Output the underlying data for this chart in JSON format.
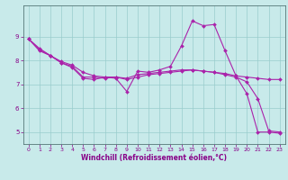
{
  "background_color": "#c8eaea",
  "line_color": "#aa22aa",
  "grid_color": "#99cccc",
  "xlabel": "Windchill (Refroidissement éolien,°C)",
  "xlabel_color": "#880088",
  "tick_color": "#880088",
  "xlim": [
    -0.5,
    23.5
  ],
  "ylim": [
    4.5,
    10.3
  ],
  "yticks": [
    5,
    6,
    7,
    8,
    9
  ],
  "xticks": [
    0,
    1,
    2,
    3,
    4,
    5,
    6,
    7,
    8,
    9,
    10,
    11,
    12,
    13,
    14,
    15,
    16,
    17,
    18,
    19,
    20,
    21,
    22,
    23
  ],
  "lines": [
    {
      "x": [
        0,
        1,
        2,
        3,
        4,
        5,
        6,
        7,
        8,
        9,
        10,
        11,
        12,
        13,
        14,
        15,
        16,
        17,
        18,
        19,
        20,
        21,
        22,
        23
      ],
      "y": [
        8.9,
        8.4,
        8.2,
        7.9,
        7.7,
        7.25,
        7.2,
        7.3,
        7.25,
        6.7,
        7.55,
        7.5,
        7.6,
        7.75,
        8.6,
        9.65,
        9.45,
        9.5,
        8.4,
        7.35,
        6.6,
        5.0,
        5.0,
        4.95
      ],
      "marker": "D",
      "markersize": 2.0,
      "linewidth": 0.8
    },
    {
      "x": [
        0,
        1,
        2,
        3,
        4,
        5,
        6,
        7,
        8,
        9,
        10,
        11,
        12,
        13,
        14,
        15,
        16,
        17,
        18,
        19,
        20,
        21,
        22,
        23
      ],
      "y": [
        8.9,
        8.45,
        8.2,
        7.9,
        7.75,
        7.3,
        7.3,
        7.25,
        7.3,
        7.25,
        7.4,
        7.45,
        7.5,
        7.55,
        7.6,
        7.6,
        7.55,
        7.5,
        7.45,
        7.35,
        7.3,
        7.25,
        7.2,
        7.2
      ],
      "marker": "D",
      "markersize": 2.0,
      "linewidth": 0.8
    },
    {
      "x": [
        0,
        1,
        2,
        3,
        4,
        5,
        6,
        7,
        8,
        9,
        10,
        11,
        12,
        13,
        14,
        15,
        16,
        17,
        18,
        19,
        20,
        21,
        22,
        23
      ],
      "y": [
        8.9,
        8.5,
        8.2,
        7.95,
        7.8,
        7.5,
        7.35,
        7.3,
        7.3,
        7.2,
        7.3,
        7.4,
        7.45,
        7.5,
        7.55,
        7.6,
        7.55,
        7.5,
        7.4,
        7.3,
        7.1,
        6.4,
        5.05,
        5.0
      ],
      "marker": "D",
      "markersize": 2.0,
      "linewidth": 0.8
    }
  ],
  "spine_color": "#557777",
  "tick_fontsize": 4.5,
  "xlabel_fontsize": 5.5,
  "xlabel_fontweight": "bold"
}
